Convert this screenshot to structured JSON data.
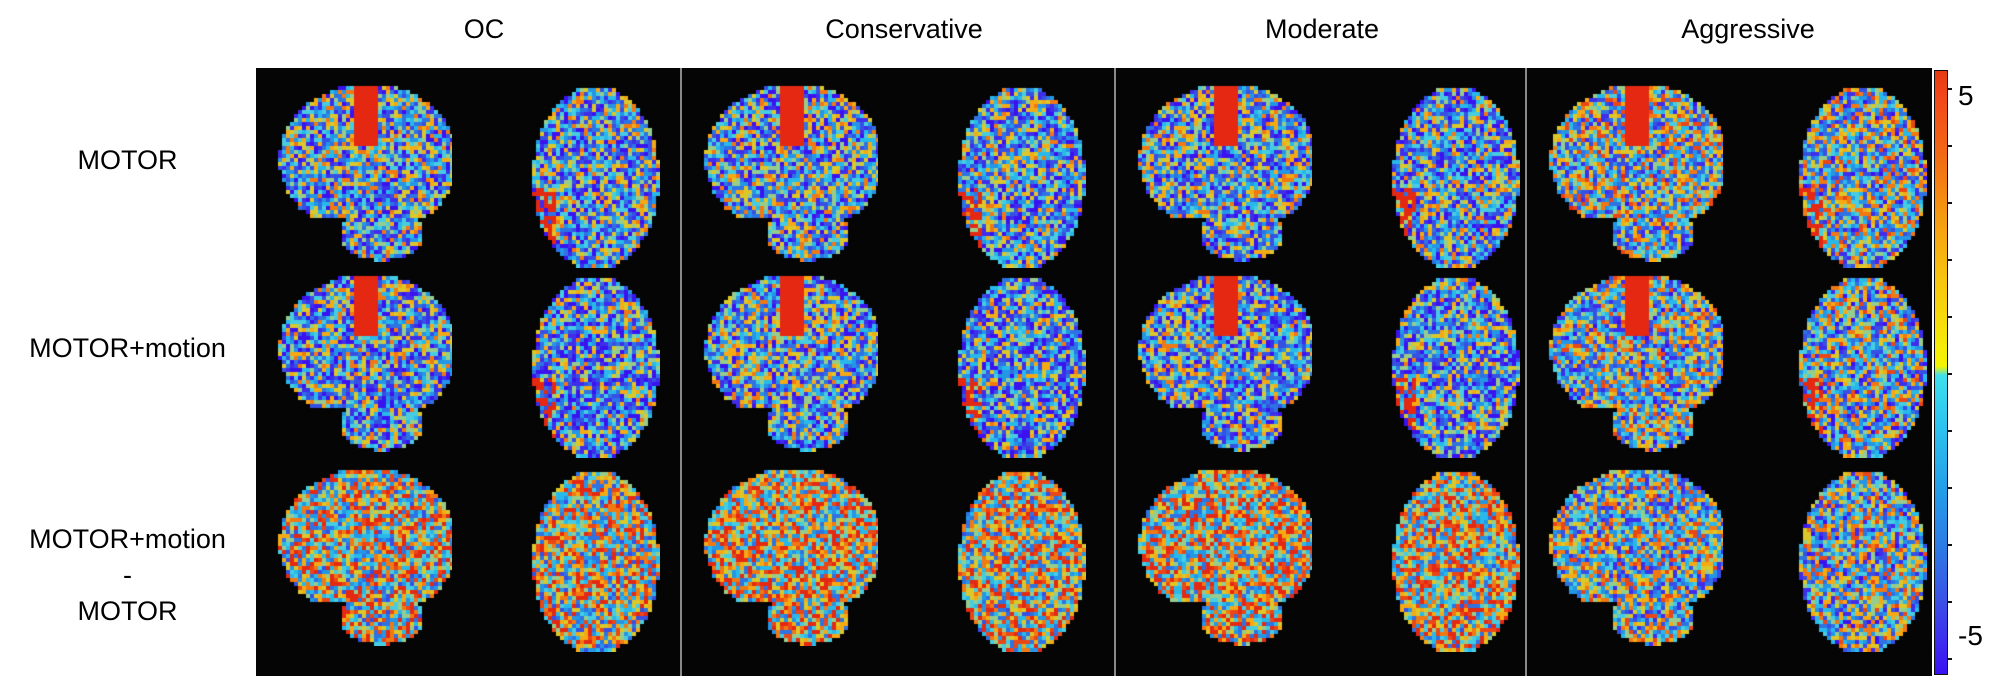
{
  "columns": [
    "OC",
    "Conservative",
    "Moderate",
    "Aggressive"
  ],
  "rows": [
    {
      "lines": [
        "MOTOR"
      ]
    },
    {
      "lines": [
        "MOTOR+motion"
      ]
    },
    {
      "lines": [
        "MOTOR+motion",
        "-",
        "MOTOR"
      ]
    }
  ],
  "colorbar": {
    "max_label": "5",
    "min_label": "-5"
  },
  "colors": {
    "background": "#050505",
    "divider": "#8a8a8a"
  }
}
